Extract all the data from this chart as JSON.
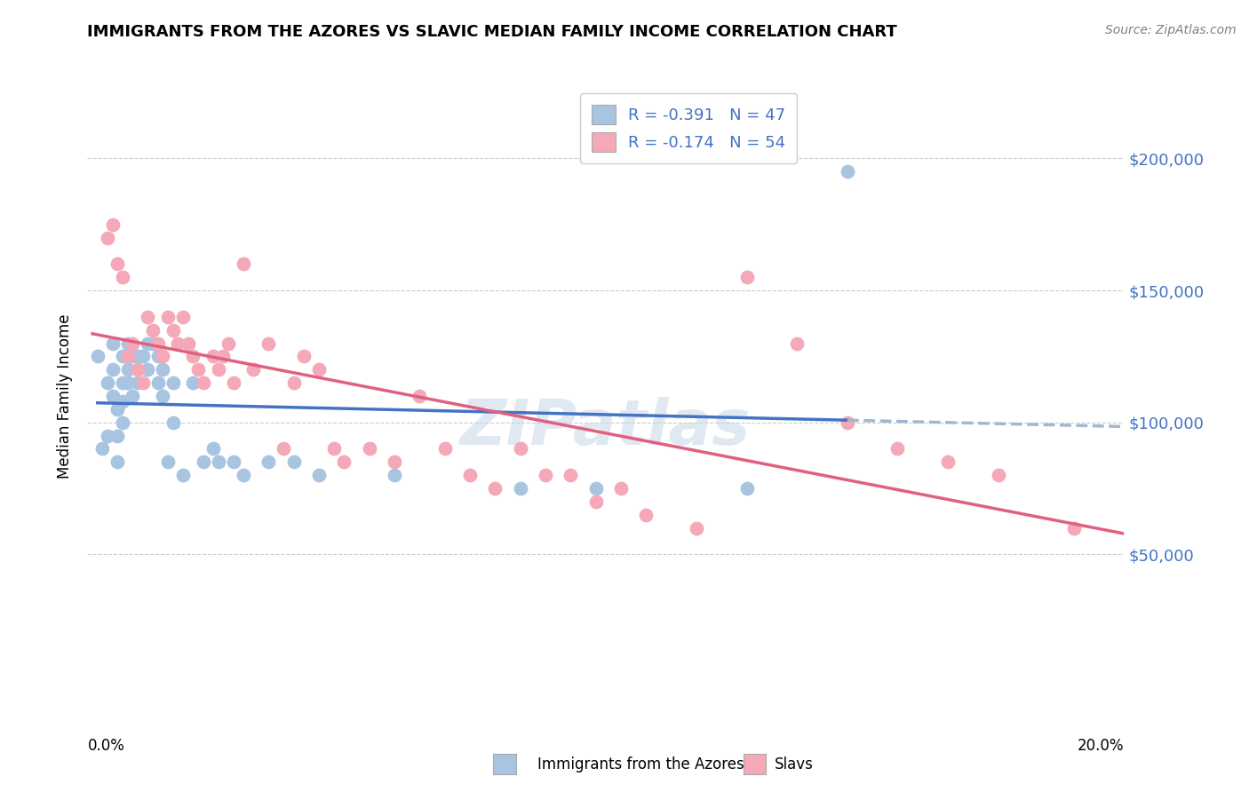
{
  "title": "IMMIGRANTS FROM THE AZORES VS SLAVIC MEDIAN FAMILY INCOME CORRELATION CHART",
  "source": "Source: ZipAtlas.com",
  "ylabel": "Median Family Income",
  "watermark": "ZIPatlas",
  "legend": {
    "azores_R": "-0.391",
    "azores_N": "47",
    "slavs_R": "-0.174",
    "slavs_N": "54"
  },
  "azores_color": "#a8c4e0",
  "slavs_color": "#f4a8b8",
  "azores_line_color": "#4472c4",
  "slavs_line_color": "#e06080",
  "dashed_line_color": "#a0b8d0",
  "ytick_labels": [
    "$50,000",
    "$100,000",
    "$150,000",
    "$200,000"
  ],
  "ytick_values": [
    50000,
    100000,
    150000,
    200000
  ],
  "ymax": 230000,
  "ymin": -10000,
  "xmin": -0.001,
  "xmax": 0.205,
  "azores_x": [
    0.001,
    0.002,
    0.003,
    0.003,
    0.004,
    0.004,
    0.004,
    0.005,
    0.005,
    0.005,
    0.006,
    0.006,
    0.006,
    0.006,
    0.007,
    0.007,
    0.007,
    0.008,
    0.008,
    0.009,
    0.009,
    0.01,
    0.011,
    0.011,
    0.012,
    0.013,
    0.013,
    0.014,
    0.014,
    0.015,
    0.016,
    0.016,
    0.018,
    0.02,
    0.022,
    0.024,
    0.025,
    0.028,
    0.03,
    0.035,
    0.04,
    0.045,
    0.06,
    0.085,
    0.1,
    0.13,
    0.15
  ],
  "azores_y": [
    125000,
    90000,
    95000,
    115000,
    130000,
    120000,
    110000,
    105000,
    95000,
    85000,
    125000,
    115000,
    108000,
    100000,
    130000,
    120000,
    115000,
    125000,
    110000,
    125000,
    115000,
    125000,
    130000,
    120000,
    130000,
    115000,
    125000,
    120000,
    110000,
    85000,
    115000,
    100000,
    80000,
    115000,
    85000,
    90000,
    85000,
    85000,
    80000,
    85000,
    85000,
    80000,
    80000,
    75000,
    75000,
    75000,
    195000
  ],
  "slavs_x": [
    0.003,
    0.004,
    0.005,
    0.006,
    0.007,
    0.008,
    0.009,
    0.01,
    0.011,
    0.012,
    0.013,
    0.014,
    0.015,
    0.016,
    0.017,
    0.018,
    0.019,
    0.02,
    0.021,
    0.022,
    0.024,
    0.025,
    0.026,
    0.027,
    0.028,
    0.03,
    0.032,
    0.035,
    0.038,
    0.04,
    0.042,
    0.045,
    0.048,
    0.05,
    0.055,
    0.06,
    0.065,
    0.07,
    0.075,
    0.08,
    0.085,
    0.09,
    0.095,
    0.1,
    0.105,
    0.11,
    0.12,
    0.13,
    0.14,
    0.15,
    0.16,
    0.17,
    0.18,
    0.195
  ],
  "slavs_y": [
    170000,
    175000,
    160000,
    155000,
    125000,
    130000,
    120000,
    115000,
    140000,
    135000,
    130000,
    125000,
    140000,
    135000,
    130000,
    140000,
    130000,
    125000,
    120000,
    115000,
    125000,
    120000,
    125000,
    130000,
    115000,
    160000,
    120000,
    130000,
    90000,
    115000,
    125000,
    120000,
    90000,
    85000,
    90000,
    85000,
    110000,
    90000,
    80000,
    75000,
    90000,
    80000,
    80000,
    70000,
    75000,
    65000,
    60000,
    155000,
    130000,
    100000,
    90000,
    85000,
    80000,
    60000
  ]
}
